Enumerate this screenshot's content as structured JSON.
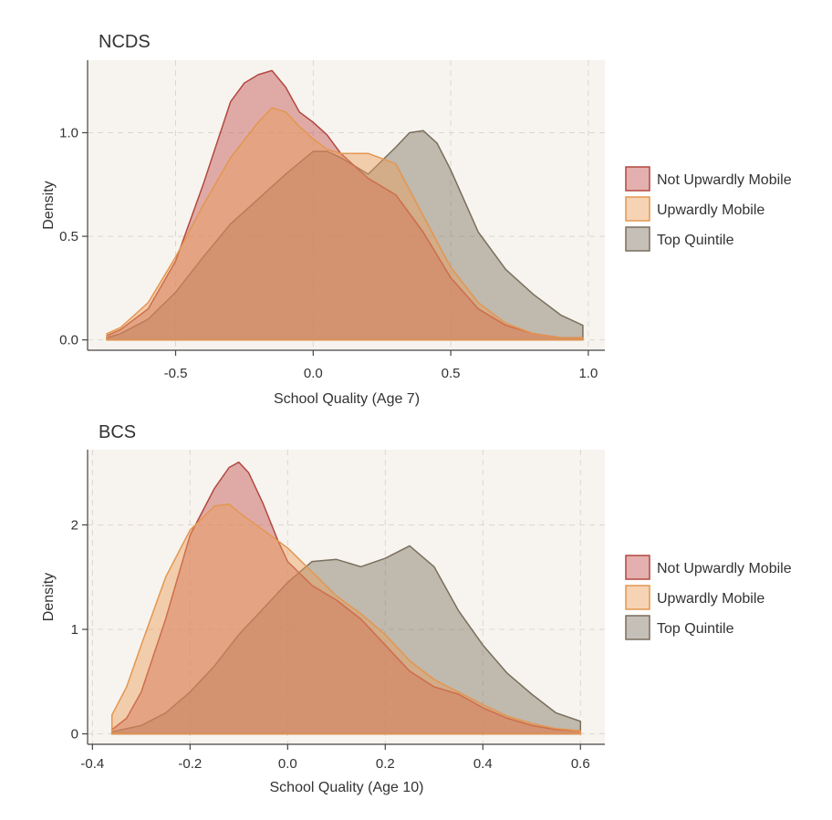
{
  "colors": {
    "panel_bg": "#f7f4ef",
    "Not Upwardly Mobile": {
      "fill": "#c0504d",
      "stroke": "#b4473f"
    },
    "Upwardly Mobile": {
      "fill": "#ec9d5a",
      "stroke": "#e4964f"
    },
    "Top Quintile": {
      "fill": "#7d7260",
      "stroke": "#7a6e5c"
    }
  },
  "chart_data": [
    {
      "type": "area",
      "title": "NCDS",
      "xlabel": "School Quality (Age 7)",
      "ylabel": "Density",
      "xlim": [
        -0.82,
        1.06
      ],
      "ylim": [
        -0.05,
        1.35
      ],
      "xticks": [
        -0.5,
        0.0,
        0.5,
        1.0
      ],
      "xtick_labels": [
        "-0.5",
        "0.0",
        "0.5",
        "1.0"
      ],
      "yticks": [
        0.0,
        0.5,
        1.0
      ],
      "ytick_labels": [
        "0.0",
        "0.5",
        "1.0"
      ],
      "grid": true,
      "legend_position": "right",
      "series": [
        {
          "name": "Not Upwardly Mobile",
          "x": [
            -0.75,
            -0.7,
            -0.6,
            -0.5,
            -0.4,
            -0.3,
            -0.25,
            -0.2,
            -0.15,
            -0.1,
            -0.05,
            0.0,
            0.05,
            0.1,
            0.2,
            0.3,
            0.4,
            0.5,
            0.6,
            0.7,
            0.8,
            0.9,
            0.98
          ],
          "y": [
            0.02,
            0.05,
            0.15,
            0.38,
            0.75,
            1.15,
            1.24,
            1.28,
            1.3,
            1.22,
            1.1,
            1.05,
            0.99,
            0.9,
            0.78,
            0.7,
            0.52,
            0.3,
            0.15,
            0.07,
            0.03,
            0.01,
            0.01
          ]
        },
        {
          "name": "Upwardly Mobile",
          "x": [
            -0.75,
            -0.7,
            -0.6,
            -0.5,
            -0.4,
            -0.3,
            -0.2,
            -0.15,
            -0.1,
            -0.05,
            0.0,
            0.05,
            0.1,
            0.2,
            0.3,
            0.4,
            0.5,
            0.6,
            0.7,
            0.8,
            0.9,
            0.98
          ],
          "y": [
            0.03,
            0.06,
            0.18,
            0.4,
            0.65,
            0.88,
            1.05,
            1.12,
            1.1,
            1.03,
            0.97,
            0.92,
            0.9,
            0.9,
            0.85,
            0.6,
            0.35,
            0.18,
            0.08,
            0.03,
            0.01,
            0.01
          ]
        },
        {
          "name": "Top Quintile",
          "x": [
            -0.75,
            -0.7,
            -0.6,
            -0.5,
            -0.4,
            -0.3,
            -0.2,
            -0.1,
            0.0,
            0.05,
            0.1,
            0.2,
            0.3,
            0.35,
            0.4,
            0.45,
            0.5,
            0.6,
            0.7,
            0.8,
            0.9,
            0.98
          ],
          "y": [
            0.01,
            0.03,
            0.1,
            0.23,
            0.4,
            0.56,
            0.68,
            0.8,
            0.91,
            0.91,
            0.88,
            0.8,
            0.93,
            1.0,
            1.01,
            0.95,
            0.82,
            0.52,
            0.34,
            0.22,
            0.12,
            0.07
          ]
        }
      ]
    },
    {
      "type": "area",
      "title": "BCS",
      "xlabel": "School Quality (Age 10)",
      "ylabel": "Density",
      "xlim": [
        -0.41,
        0.65
      ],
      "ylim": [
        -0.1,
        2.72
      ],
      "xticks": [
        -0.4,
        -0.2,
        0.0,
        0.2,
        0.4,
        0.6
      ],
      "xtick_labels": [
        "-0.4",
        "-0.2",
        "0.0",
        "0.2",
        "0.4",
        "0.6"
      ],
      "yticks": [
        0,
        1,
        2
      ],
      "ytick_labels": [
        "0",
        "1",
        "2"
      ],
      "grid": true,
      "legend_position": "right",
      "series": [
        {
          "name": "Not Upwardly Mobile",
          "x": [
            -0.36,
            -0.33,
            -0.3,
            -0.25,
            -0.2,
            -0.15,
            -0.12,
            -0.1,
            -0.08,
            -0.05,
            -0.02,
            0.0,
            0.05,
            0.1,
            0.15,
            0.2,
            0.25,
            0.3,
            0.35,
            0.4,
            0.45,
            0.5,
            0.55,
            0.6
          ],
          "y": [
            0.04,
            0.15,
            0.4,
            1.1,
            1.9,
            2.35,
            2.55,
            2.6,
            2.5,
            2.2,
            1.85,
            1.65,
            1.42,
            1.28,
            1.1,
            0.85,
            0.6,
            0.45,
            0.38,
            0.25,
            0.15,
            0.08,
            0.04,
            0.03
          ]
        },
        {
          "name": "Upwardly Mobile",
          "x": [
            -0.36,
            -0.33,
            -0.3,
            -0.25,
            -0.2,
            -0.15,
            -0.12,
            -0.1,
            -0.05,
            0.0,
            0.05,
            0.1,
            0.15,
            0.2,
            0.25,
            0.3,
            0.35,
            0.4,
            0.45,
            0.5,
            0.55,
            0.6
          ],
          "y": [
            0.18,
            0.45,
            0.85,
            1.5,
            1.95,
            2.18,
            2.2,
            2.12,
            1.95,
            1.78,
            1.55,
            1.32,
            1.15,
            0.95,
            0.7,
            0.52,
            0.4,
            0.28,
            0.17,
            0.1,
            0.05,
            0.03
          ]
        },
        {
          "name": "Top Quintile",
          "x": [
            -0.36,
            -0.3,
            -0.25,
            -0.2,
            -0.15,
            -0.1,
            -0.05,
            0.0,
            0.05,
            0.1,
            0.15,
            0.2,
            0.25,
            0.3,
            0.35,
            0.4,
            0.45,
            0.5,
            0.55,
            0.6
          ],
          "y": [
            0.02,
            0.08,
            0.2,
            0.4,
            0.65,
            0.95,
            1.2,
            1.45,
            1.65,
            1.67,
            1.6,
            1.68,
            1.8,
            1.6,
            1.18,
            0.85,
            0.58,
            0.38,
            0.2,
            0.12
          ]
        }
      ]
    }
  ]
}
